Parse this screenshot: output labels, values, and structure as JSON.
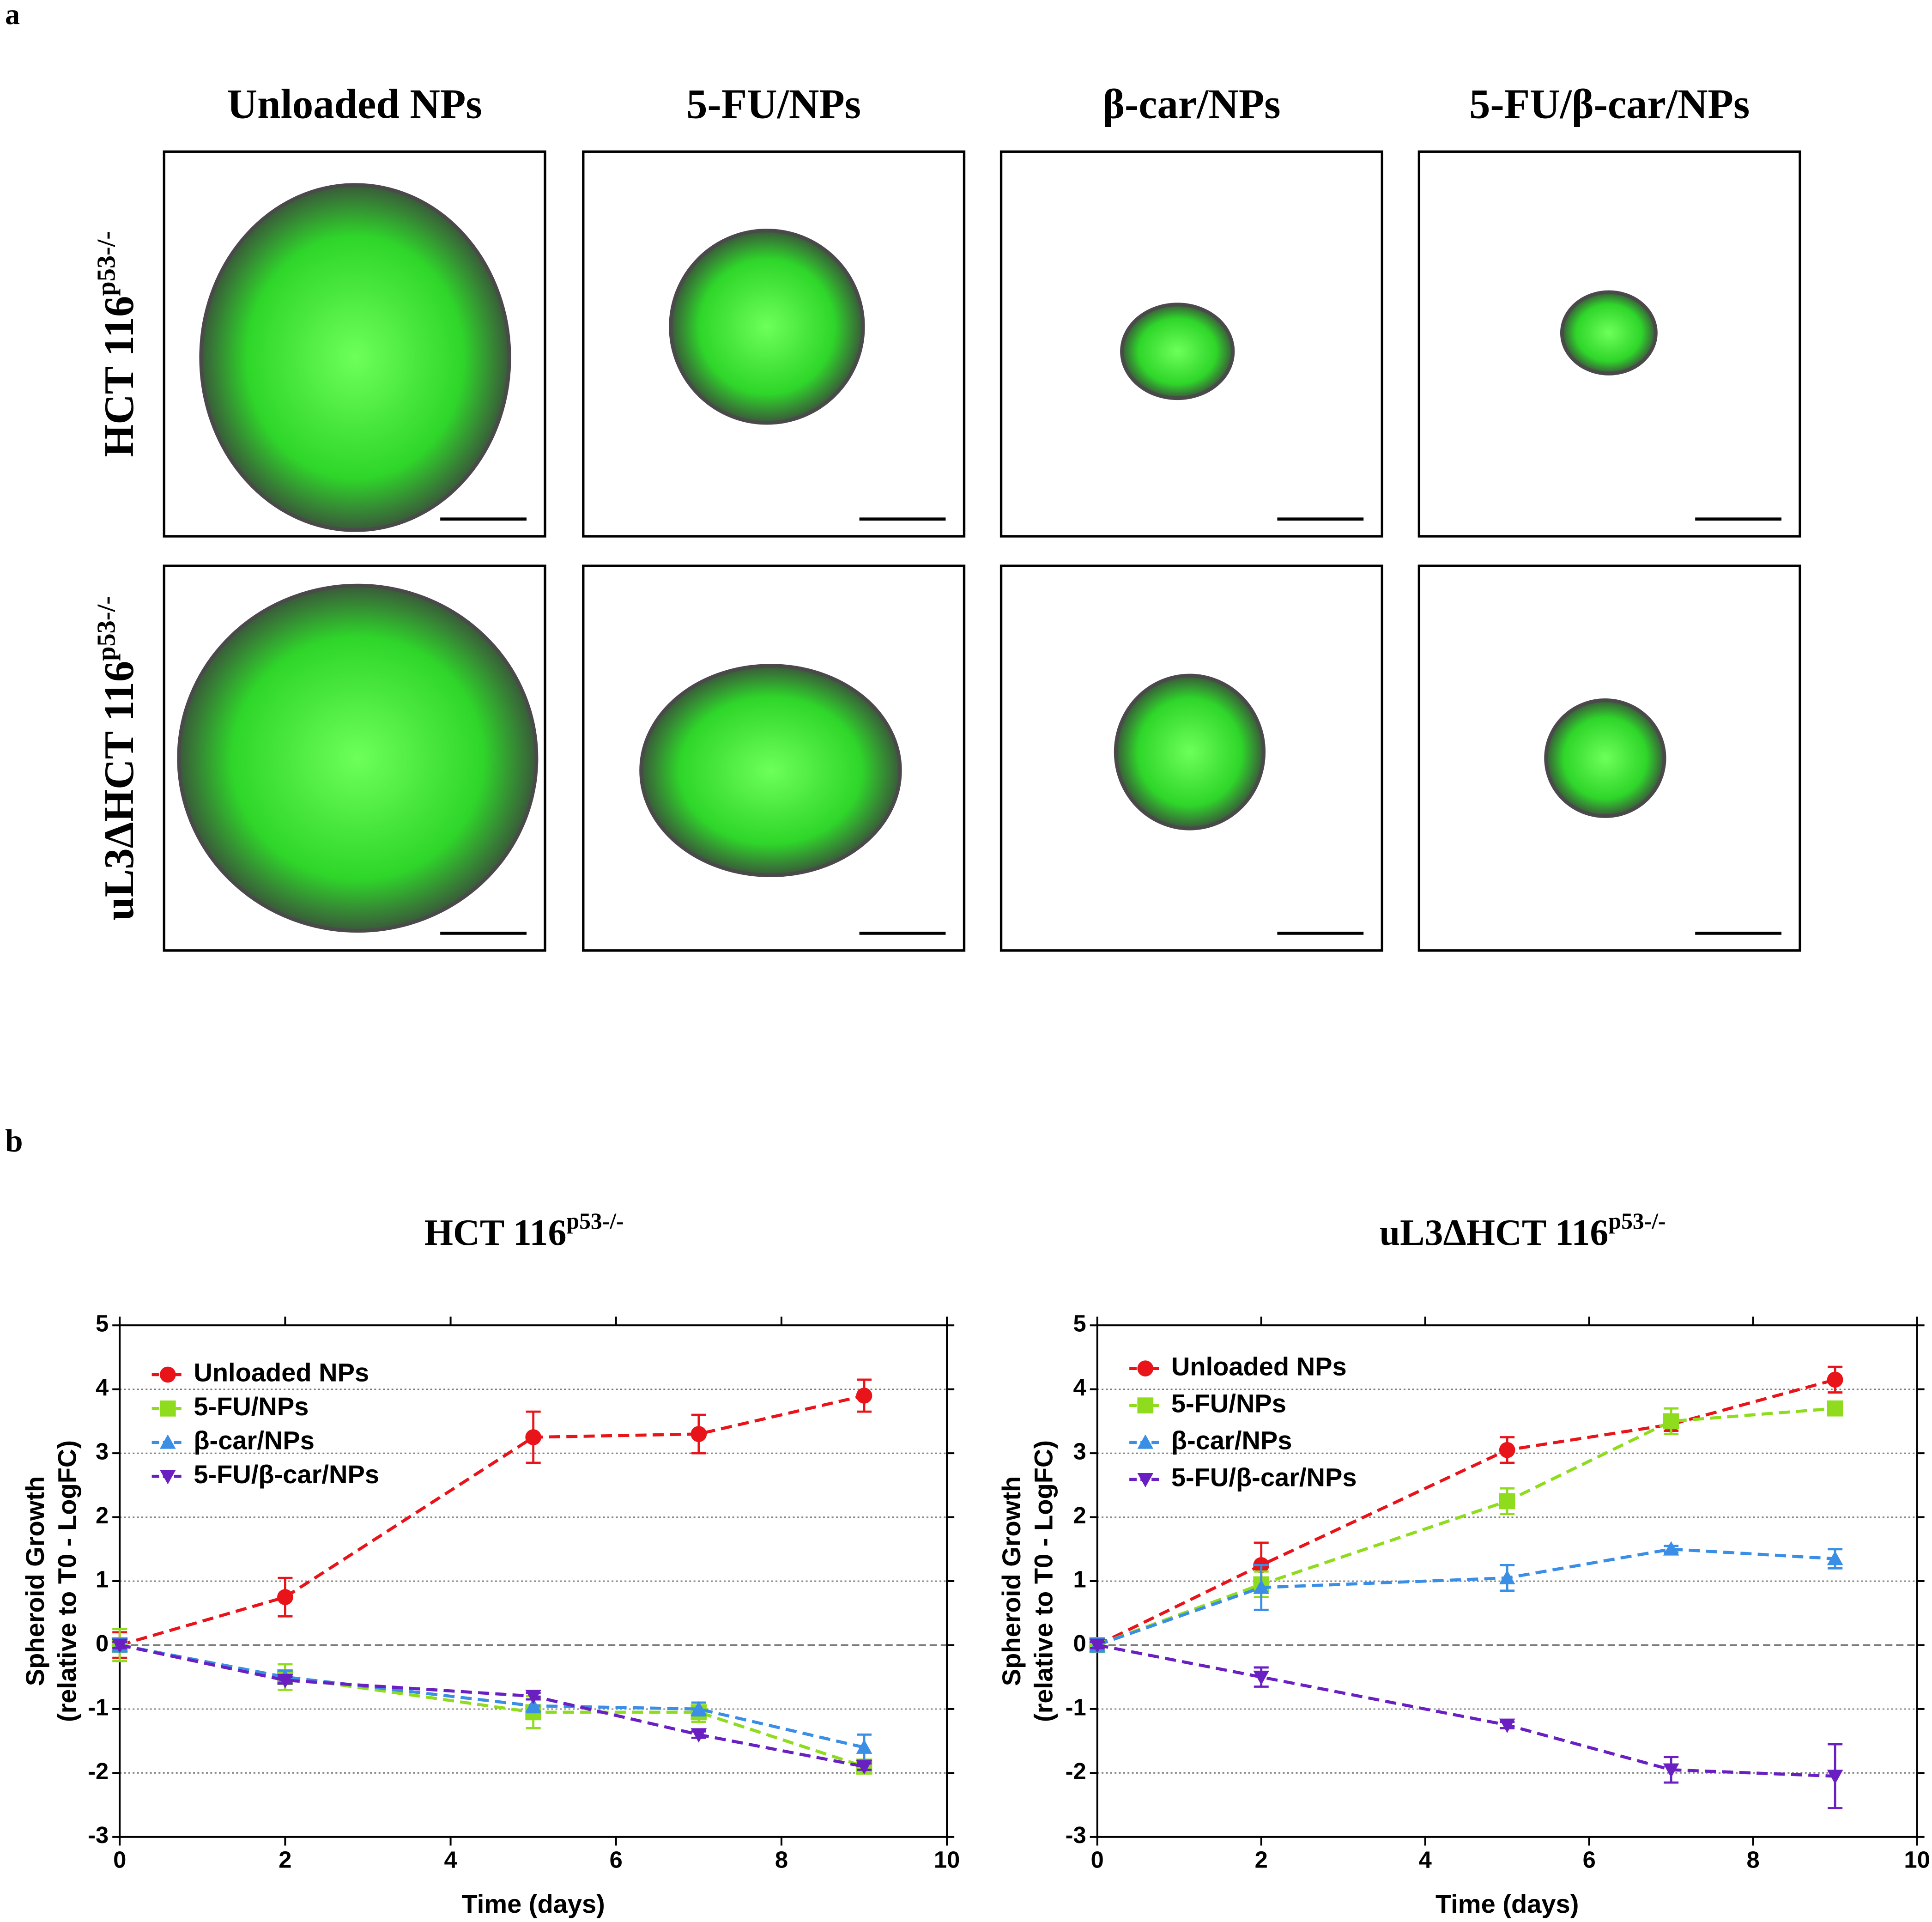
{
  "figure": {
    "panel_a_label": "a",
    "panel_b_label": "b",
    "columns": [
      "Unloaded NPs",
      "5-FU/NPs",
      "β-car/NPs",
      "5-FU/β-car/NPs"
    ],
    "rows": [
      {
        "text": "HCT 116",
        "superscript": "p53-/-"
      },
      {
        "text": "uL3ΔHCT 116",
        "superscript": "p53-/-"
      }
    ]
  },
  "chart_data": [
    {
      "type": "line",
      "title": "HCT 116",
      "title_superscript": "p53-/-",
      "xlabel": "Time (days)",
      "ylabel": [
        "Spheroid Growth",
        "(relative to T0 - LogFC)"
      ],
      "x": [
        0,
        2,
        5,
        7,
        9
      ],
      "xlim": [
        0,
        10
      ],
      "xticks": [
        0,
        2,
        4,
        6,
        8,
        10
      ],
      "ylim": [
        -3,
        5
      ],
      "yticks": [
        -3,
        -2,
        -1,
        0,
        1,
        2,
        3,
        4,
        5
      ],
      "grid": true,
      "series": [
        {
          "name": "Unloaded NPs",
          "color": "#e8141a",
          "marker": "circle",
          "values": [
            0,
            0.75,
            3.25,
            3.3,
            3.9
          ],
          "errors": [
            0.2,
            0.3,
            0.4,
            0.3,
            0.25
          ]
        },
        {
          "name": "5-FU/NPs",
          "color": "#8fdc1e",
          "marker": "square",
          "values": [
            0,
            -0.5,
            -1.05,
            -1.05,
            -1.9
          ],
          "errors": [
            0.25,
            0.2,
            0.25,
            0.15,
            0.05
          ]
        },
        {
          "name": "β-car/NPs",
          "color": "#3a8ee6",
          "marker": "triangle-up",
          "values": [
            0,
            -0.5,
            -0.95,
            -1.0,
            -1.6
          ],
          "errors": [
            0.1,
            0.1,
            0.1,
            0.1,
            0.2
          ]
        },
        {
          "name": "5-FU/β-car/NPs",
          "color": "#6a1fc2",
          "marker": "triangle-down",
          "values": [
            0,
            -0.55,
            -0.8,
            -1.4,
            -1.9
          ],
          "errors": [
            0.05,
            0.05,
            0.05,
            0.05,
            0.05
          ]
        }
      ]
    },
    {
      "type": "line",
      "title": "uL3ΔHCT 116",
      "title_superscript": "p53-/-",
      "xlabel": "Time (days)",
      "ylabel": [
        "Spheroid Growth",
        "(relative to T0 - LogFC)"
      ],
      "x": [
        0,
        2,
        5,
        7,
        9
      ],
      "xlim": [
        0,
        10
      ],
      "xticks": [
        0,
        2,
        4,
        6,
        8,
        10
      ],
      "ylim": [
        -3,
        5
      ],
      "yticks": [
        -3,
        -2,
        -1,
        0,
        1,
        2,
        3,
        4,
        5
      ],
      "grid": true,
      "series": [
        {
          "name": "Unloaded NPs",
          "color": "#e8141a",
          "marker": "circle",
          "values": [
            0,
            1.25,
            3.05,
            3.45,
            4.15
          ],
          "errors": [
            0.1,
            0.35,
            0.2,
            0.1,
            0.2
          ]
        },
        {
          "name": "5-FU/NPs",
          "color": "#8fdc1e",
          "marker": "square",
          "values": [
            0,
            0.95,
            2.25,
            3.5,
            3.7
          ],
          "errors": [
            0.1,
            0.2,
            0.2,
            0.2,
            0.05
          ]
        },
        {
          "name": "β-car/NPs",
          "color": "#3a8ee6",
          "marker": "triangle-up",
          "values": [
            0,
            0.9,
            1.05,
            1.5,
            1.35
          ],
          "errors": [
            0.1,
            0.35,
            0.2,
            0.05,
            0.15
          ]
        },
        {
          "name": "5-FU/β-car/NPs",
          "color": "#6a1fc2",
          "marker": "triangle-down",
          "values": [
            0,
            -0.5,
            -1.25,
            -1.95,
            -2.05
          ],
          "errors": [
            0.05,
            0.15,
            0.05,
            0.2,
            0.5
          ]
        }
      ]
    }
  ]
}
